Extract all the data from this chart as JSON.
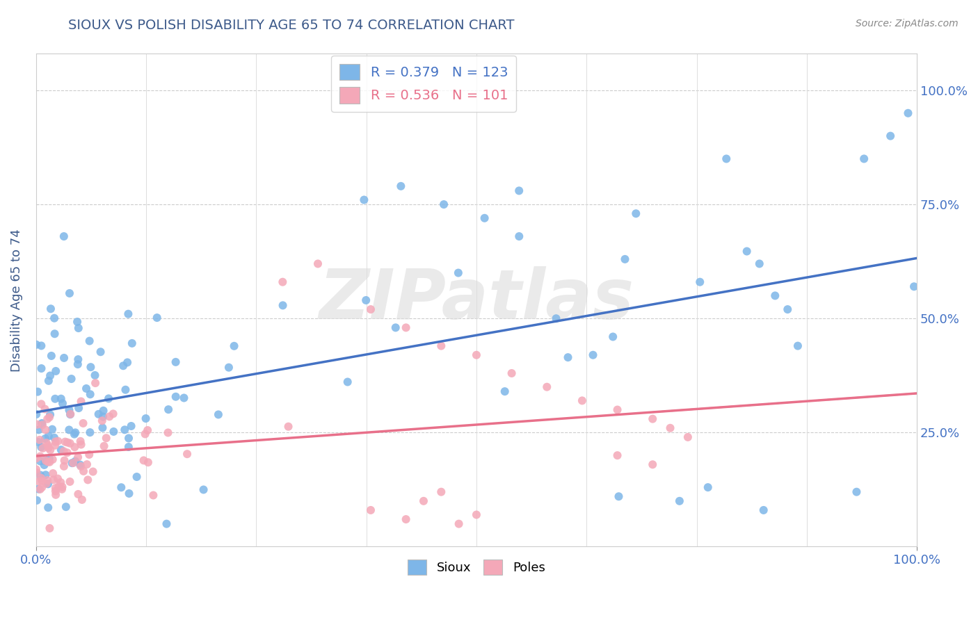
{
  "title": "SIOUX VS POLISH DISABILITY AGE 65 TO 74 CORRELATION CHART",
  "source": "Source: ZipAtlas.com",
  "ylabel": "Disability Age 65 to 74",
  "legend_label_sioux": "Sioux",
  "legend_label_poles": "Poles",
  "sioux_R": "0.379",
  "sioux_N": "123",
  "poles_R": "0.536",
  "poles_N": "101",
  "xlim": [
    0.0,
    1.0
  ],
  "color_sioux": "#7EB6E8",
  "color_poles": "#F4A8B8",
  "color_sioux_line": "#4472C4",
  "color_poles_line": "#E8708A",
  "title_color": "#3D5A8A",
  "axis_label_color": "#3D5A8A",
  "tick_label_color": "#4472C4",
  "background_color": "#FFFFFF",
  "watermark_text": "ZIPatlas",
  "watermark_color": "#DDDDDD"
}
